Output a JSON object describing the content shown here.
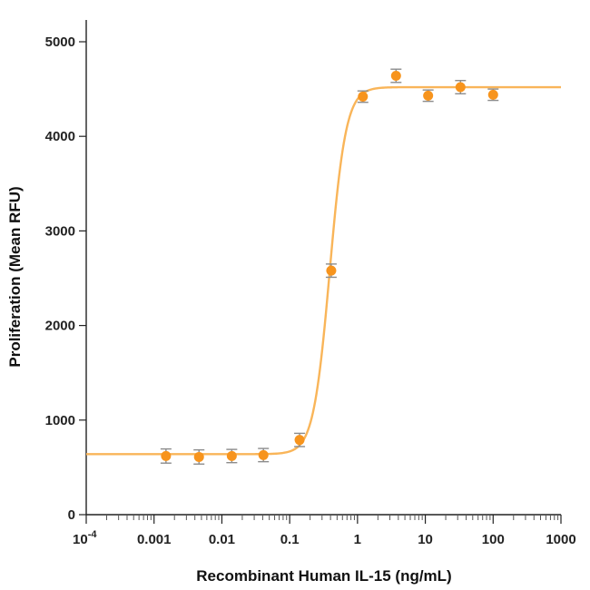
{
  "chart_data": {
    "type": "scatter",
    "xlabel": "Recombinant Human IL-15 (ng/mL)",
    "ylabel": "Proliferation (Mean RFU)",
    "x_scale": "log",
    "xlim": [
      0.0001,
      1000
    ],
    "ylim": [
      0,
      5000
    ],
    "x_ticks": [
      {
        "value": 0.0001,
        "base": "10",
        "exp": "-4"
      },
      {
        "value": 0.001,
        "label": "0.001"
      },
      {
        "value": 0.01,
        "label": "0.01"
      },
      {
        "value": 0.1,
        "label": "0.1"
      },
      {
        "value": 1,
        "label": "1"
      },
      {
        "value": 10,
        "label": "10"
      },
      {
        "value": 100,
        "label": "100"
      },
      {
        "value": 1000,
        "label": "1000"
      }
    ],
    "y_ticks": [
      {
        "value": 0,
        "label": "0"
      },
      {
        "value": 1000,
        "label": "1000"
      },
      {
        "value": 2000,
        "label": "2000"
      },
      {
        "value": 3000,
        "label": "3000"
      },
      {
        "value": 4000,
        "label": "4000"
      },
      {
        "value": 5000,
        "label": "5000"
      }
    ],
    "grid": false,
    "point_color": "#F7941D",
    "curve_color": "#F9B559",
    "errorbar_color": "#8C8C8C",
    "points": [
      {
        "x": 0.0015,
        "y": 620,
        "err": 75
      },
      {
        "x": 0.0046,
        "y": 610,
        "err": 75
      },
      {
        "x": 0.014,
        "y": 620,
        "err": 70
      },
      {
        "x": 0.041,
        "y": 630,
        "err": 70
      },
      {
        "x": 0.14,
        "y": 790,
        "err": 70
      },
      {
        "x": 0.41,
        "y": 2580,
        "err": 70
      },
      {
        "x": 1.2,
        "y": 4420,
        "err": 60
      },
      {
        "x": 3.7,
        "y": 4640,
        "err": 70
      },
      {
        "x": 11,
        "y": 4430,
        "err": 60
      },
      {
        "x": 33,
        "y": 4520,
        "err": 70
      },
      {
        "x": 100,
        "y": 4440,
        "err": 60
      }
    ],
    "fit": {
      "model": "4PL",
      "bottom": 640,
      "top": 4520,
      "ec50": 0.39,
      "hill": 3.6,
      "x_range": [
        0.0001,
        1000
      ]
    }
  }
}
